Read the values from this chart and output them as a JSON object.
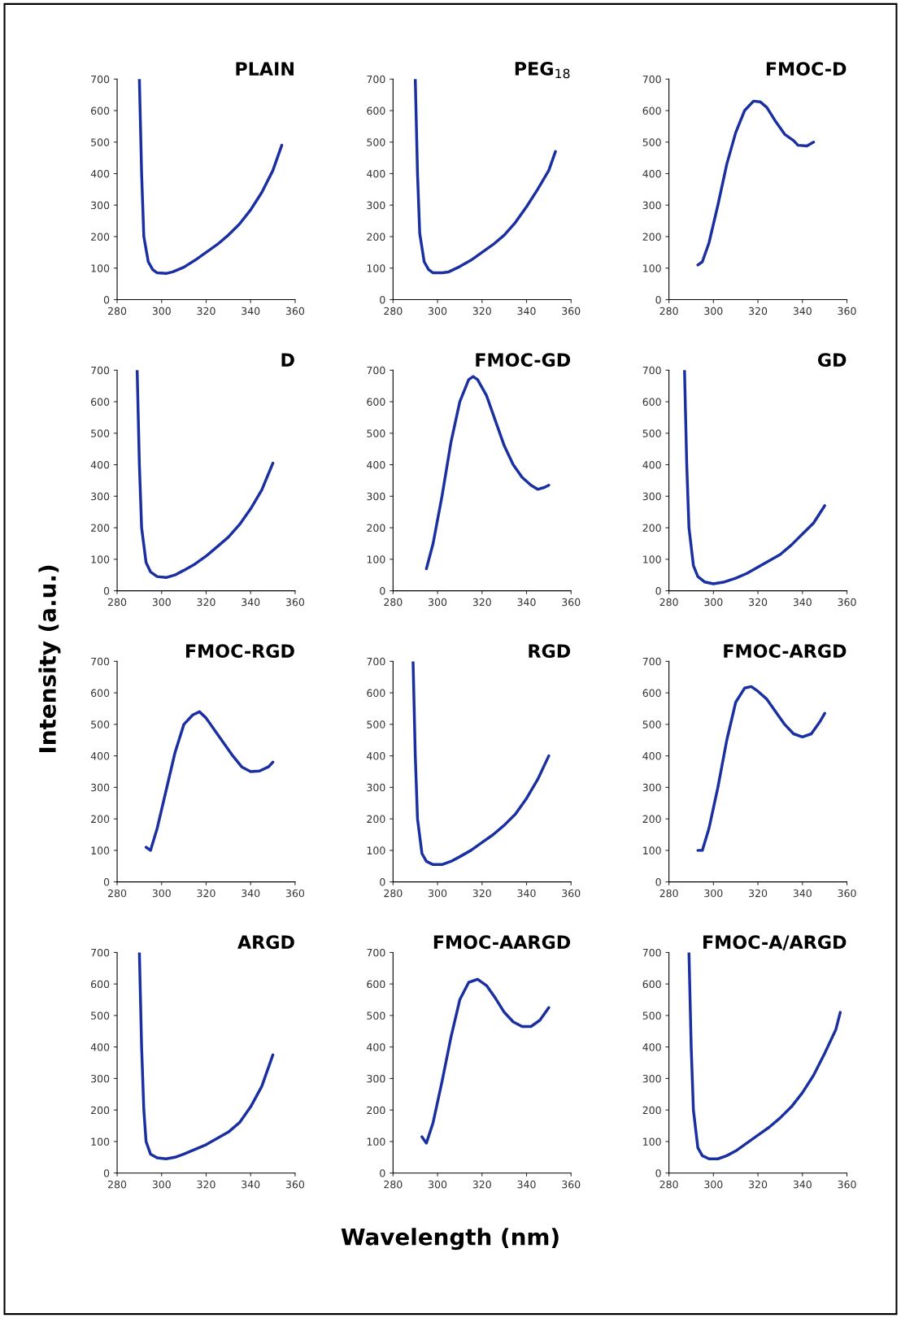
{
  "chart_data": [
    {
      "type": "line",
      "title": "PLAIN",
      "color": "#1a2fa0",
      "xlim": [
        280,
        360
      ],
      "xticks": [
        280,
        300,
        320,
        340,
        360
      ],
      "ylim": [
        0,
        700
      ],
      "yticks": [
        0,
        100,
        200,
        300,
        400,
        500,
        600,
        700
      ],
      "x": [
        290,
        291,
        292,
        294,
        296,
        298,
        302,
        305,
        310,
        315,
        320,
        325,
        330,
        335,
        340,
        345,
        350,
        354
      ],
      "values": [
        700,
        400,
        200,
        120,
        95,
        85,
        83,
        88,
        103,
        125,
        150,
        175,
        205,
        240,
        285,
        340,
        410,
        490
      ]
    },
    {
      "type": "line",
      "title": "PEG$_{18}$",
      "color": "#1a2fa0",
      "xlim": [
        280,
        360
      ],
      "xticks": [
        280,
        300,
        320,
        340,
        360
      ],
      "ylim": [
        0,
        700
      ],
      "yticks": [
        0,
        100,
        200,
        300,
        400,
        500,
        600,
        700
      ],
      "x": [
        290,
        291,
        292,
        294,
        296,
        298,
        302,
        305,
        310,
        315,
        320,
        325,
        330,
        335,
        340,
        345,
        350,
        353
      ],
      "values": [
        700,
        400,
        210,
        120,
        95,
        85,
        85,
        88,
        105,
        125,
        150,
        175,
        205,
        245,
        295,
        350,
        410,
        470
      ]
    },
    {
      "type": "line",
      "title": "FMOC-D",
      "color": "#1a2fa0",
      "xlim": [
        280,
        360
      ],
      "xticks": [
        280,
        300,
        320,
        340,
        360
      ],
      "ylim": [
        0,
        700
      ],
      "yticks": [
        0,
        100,
        200,
        300,
        400,
        500,
        600,
        700
      ],
      "x": [
        293,
        295,
        298,
        302,
        306,
        310,
        314,
        318,
        321,
        324,
        328,
        332,
        336,
        338,
        342,
        345
      ],
      "values": [
        110,
        120,
        180,
        300,
        430,
        530,
        600,
        630,
        628,
        610,
        565,
        525,
        505,
        490,
        488,
        500
      ]
    },
    {
      "type": "line",
      "title": "D",
      "color": "#1a2fa0",
      "xlim": [
        280,
        360
      ],
      "xticks": [
        280,
        300,
        320,
        340,
        360
      ],
      "ylim": [
        0,
        700
      ],
      "yticks": [
        0,
        100,
        200,
        300,
        400,
        500,
        600,
        700
      ],
      "x": [
        289,
        290,
        291,
        293,
        295,
        298,
        302,
        306,
        310,
        315,
        320,
        325,
        330,
        335,
        340,
        345,
        350
      ],
      "values": [
        700,
        400,
        200,
        90,
        60,
        45,
        42,
        50,
        65,
        85,
        110,
        140,
        170,
        210,
        260,
        320,
        405
      ]
    },
    {
      "type": "line",
      "title": "FMOC-GD",
      "color": "#1a2fa0",
      "xlim": [
        280,
        360
      ],
      "xticks": [
        280,
        300,
        320,
        340,
        360
      ],
      "ylim": [
        0,
        700
      ],
      "yticks": [
        0,
        100,
        200,
        300,
        400,
        500,
        600,
        700
      ],
      "x": [
        295,
        298,
        302,
        306,
        310,
        314,
        316,
        318,
        322,
        326,
        330,
        334,
        338,
        342,
        345,
        348,
        350
      ],
      "values": [
        70,
        150,
        300,
        470,
        600,
        670,
        680,
        670,
        620,
        540,
        460,
        400,
        360,
        335,
        322,
        328,
        335
      ]
    },
    {
      "type": "line",
      "title": "GD",
      "color": "#1a2fa0",
      "xlim": [
        280,
        360
      ],
      "xticks": [
        280,
        300,
        320,
        340,
        360
      ],
      "ylim": [
        0,
        700
      ],
      "yticks": [
        0,
        100,
        200,
        300,
        400,
        500,
        600,
        700
      ],
      "x": [
        287,
        288,
        289,
        291,
        293,
        296,
        300,
        305,
        310,
        315,
        320,
        325,
        330,
        335,
        340,
        345,
        350
      ],
      "values": [
        700,
        400,
        200,
        80,
        45,
        28,
        22,
        28,
        40,
        55,
        75,
        95,
        115,
        145,
        180,
        215,
        270
      ]
    },
    {
      "type": "line",
      "title": "FMOC-RGD",
      "color": "#1a2fa0",
      "ylabel": "Intensity (a.u.)",
      "xlim": [
        280,
        360
      ],
      "xticks": [
        280,
        300,
        320,
        340,
        360
      ],
      "ylim": [
        0,
        700
      ],
      "yticks": [
        0,
        100,
        200,
        300,
        400,
        500,
        600,
        700
      ],
      "x": [
        293,
        295,
        298,
        302,
        306,
        310,
        314,
        317,
        320,
        324,
        328,
        332,
        336,
        340,
        344,
        348,
        350
      ],
      "values": [
        110,
        100,
        170,
        290,
        410,
        500,
        530,
        540,
        520,
        480,
        440,
        400,
        365,
        350,
        352,
        365,
        380
      ]
    },
    {
      "type": "line",
      "title": "RGD",
      "color": "#1a2fa0",
      "xlim": [
        280,
        360
      ],
      "xticks": [
        280,
        300,
        320,
        340,
        360
      ],
      "ylim": [
        0,
        700
      ],
      "yticks": [
        0,
        100,
        200,
        300,
        400,
        500,
        600,
        700
      ],
      "x": [
        289,
        290,
        291,
        293,
        295,
        298,
        302,
        306,
        310,
        315,
        320,
        325,
        330,
        335,
        340,
        345,
        350
      ],
      "values": [
        700,
        400,
        200,
        90,
        65,
        55,
        55,
        65,
        80,
        100,
        125,
        150,
        180,
        215,
        265,
        325,
        400
      ]
    },
    {
      "type": "line",
      "title": "FMOC-ARGD",
      "color": "#1a2fa0",
      "xlim": [
        280,
        360
      ],
      "xticks": [
        280,
        300,
        320,
        340,
        360
      ],
      "ylim": [
        0,
        700
      ],
      "yticks": [
        0,
        100,
        200,
        300,
        400,
        500,
        600,
        700
      ],
      "x": [
        293,
        295,
        298,
        302,
        306,
        310,
        314,
        317,
        320,
        324,
        328,
        332,
        336,
        340,
        344,
        348,
        350
      ],
      "values": [
        100,
        100,
        170,
        300,
        450,
        570,
        615,
        620,
        605,
        580,
        540,
        500,
        470,
        460,
        470,
        510,
        535
      ]
    },
    {
      "type": "line",
      "title": "ARGD",
      "color": "#1a2fa0",
      "xlim": [
        280,
        360
      ],
      "xticks": [
        280,
        300,
        320,
        340,
        360
      ],
      "ylim": [
        0,
        700
      ],
      "yticks": [
        0,
        100,
        200,
        300,
        400,
        500,
        600,
        700
      ],
      "x": [
        290,
        291,
        292,
        293,
        295,
        298,
        302,
        306,
        310,
        315,
        320,
        325,
        330,
        335,
        340,
        345,
        350
      ],
      "values": [
        700,
        400,
        200,
        100,
        60,
        48,
        45,
        50,
        60,
        75,
        90,
        110,
        130,
        160,
        210,
        275,
        375
      ]
    },
    {
      "type": "line",
      "title": "FMOC-AARGD",
      "color": "#1a2fa0",
      "xlabel": "Wavelength (nm)",
      "xlim": [
        280,
        360
      ],
      "xticks": [
        280,
        300,
        320,
        340,
        360
      ],
      "ylim": [
        0,
        700
      ],
      "yticks": [
        0,
        100,
        200,
        300,
        400,
        500,
        600,
        700
      ],
      "x": [
        293,
        295,
        298,
        302,
        306,
        310,
        314,
        318,
        322,
        326,
        330,
        334,
        338,
        342,
        346,
        350
      ],
      "values": [
        115,
        95,
        160,
        290,
        430,
        550,
        605,
        615,
        595,
        555,
        510,
        480,
        465,
        465,
        485,
        525
      ]
    },
    {
      "type": "line",
      "title": "FMOC-A/ARGD",
      "color": "#1a2fa0",
      "xlim": [
        280,
        360
      ],
      "xticks": [
        280,
        300,
        320,
        340,
        360
      ],
      "ylim": [
        0,
        700
      ],
      "yticks": [
        0,
        100,
        200,
        300,
        400,
        500,
        600,
        700
      ],
      "x": [
        289,
        290,
        291,
        293,
        295,
        298,
        302,
        306,
        310,
        315,
        320,
        325,
        330,
        335,
        340,
        345,
        350,
        355,
        357
      ],
      "values": [
        700,
        400,
        200,
        80,
        55,
        45,
        45,
        55,
        70,
        95,
        120,
        145,
        175,
        210,
        255,
        310,
        380,
        455,
        510
      ]
    }
  ]
}
